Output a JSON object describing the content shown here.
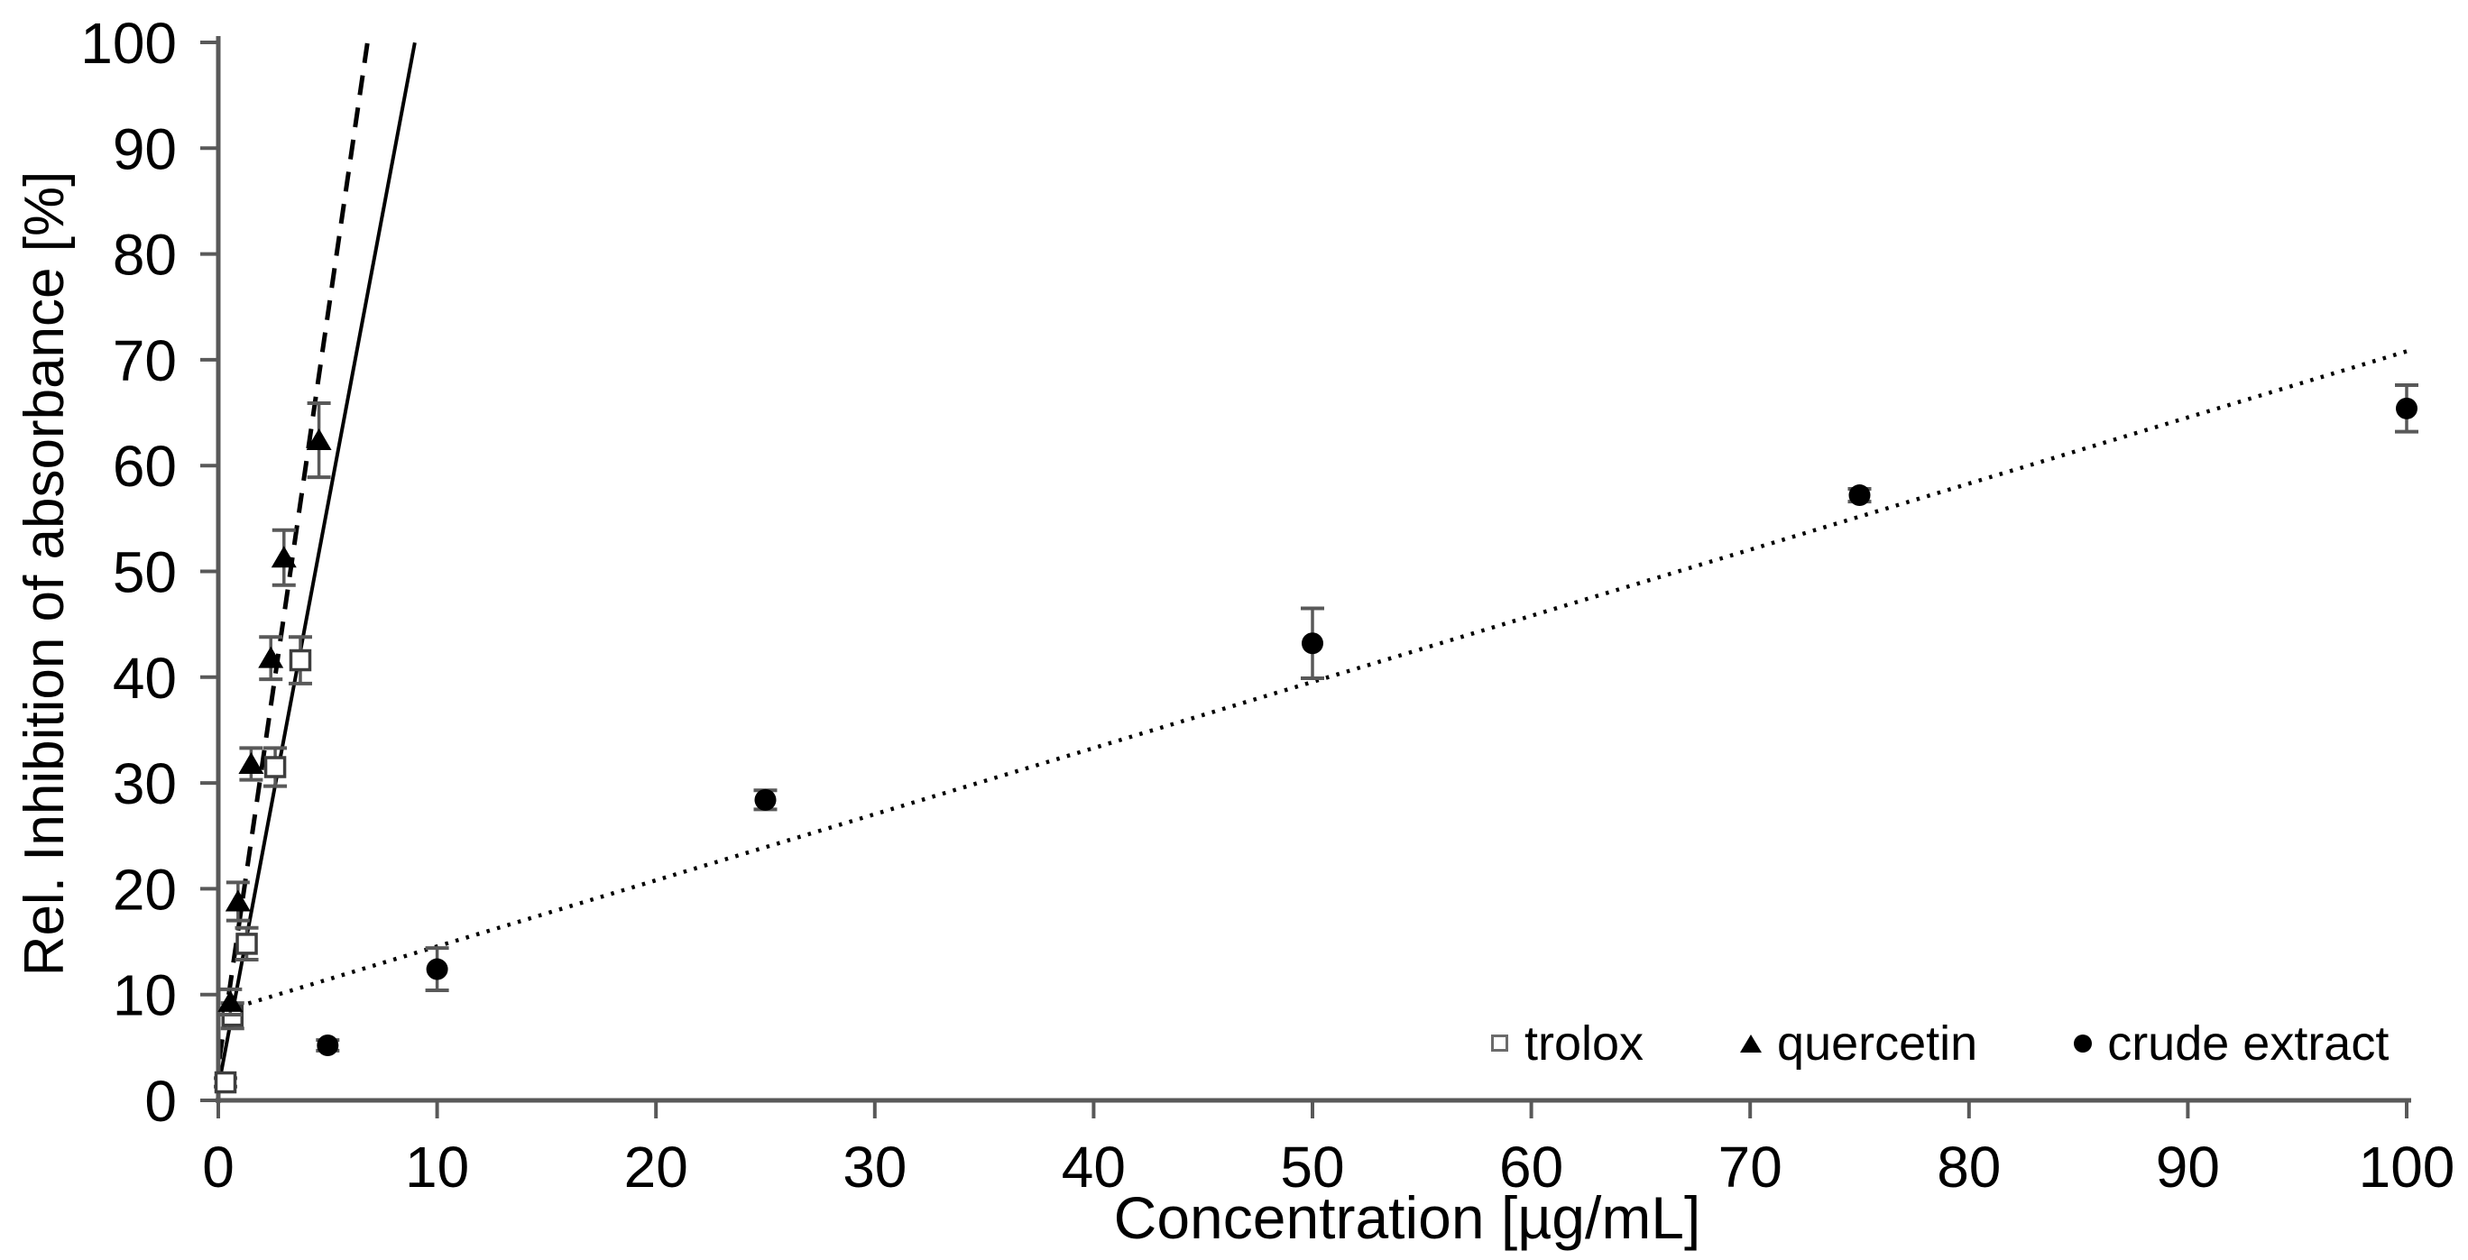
{
  "chart_data": {
    "type": "scatter",
    "title": "",
    "xlabel": "Concentration [µg/mL]",
    "ylabel": "Rel. Inhibition of absorbance [%]",
    "xlim": [
      0,
      100
    ],
    "ylim": [
      0,
      100
    ],
    "x_ticks": [
      0,
      10,
      20,
      30,
      40,
      50,
      60,
      70,
      80,
      90,
      100
    ],
    "y_ticks": [
      0,
      10,
      20,
      30,
      40,
      50,
      60,
      70,
      80,
      90,
      100
    ],
    "grid": false,
    "legend_position": "inside-bottom-right",
    "axis_color": "#595959",
    "error_bar_color": "#595959",
    "marker_color": "#000000",
    "series": [
      {
        "name": "trolox",
        "marker": "open-square",
        "points": [
          {
            "x": 0.33,
            "y": 1.7,
            "err": 0.4
          },
          {
            "x": 0.65,
            "y": 8.0,
            "err": 1.2
          },
          {
            "x": 1.3,
            "y": 14.8,
            "err": 1.5
          },
          {
            "x": 2.6,
            "y": 31.5,
            "err": 1.8
          },
          {
            "x": 3.75,
            "y": 41.6,
            "err": 2.2
          }
        ]
      },
      {
        "name": "quercetin",
        "marker": "filled-triangle",
        "points": [
          {
            "x": 0.55,
            "y": 9.3,
            "err": 1.2
          },
          {
            "x": 0.9,
            "y": 18.8,
            "err": 1.8
          },
          {
            "x": 1.5,
            "y": 31.8,
            "err": 1.5
          },
          {
            "x": 2.4,
            "y": 41.8,
            "err": 2.0
          },
          {
            "x": 3.0,
            "y": 51.3,
            "err": 2.6
          },
          {
            "x": 4.6,
            "y": 62.4,
            "err": 3.5
          }
        ]
      },
      {
        "name": "crude extract",
        "marker": "filled-circle",
        "points": [
          {
            "x": 5,
            "y": 5.2,
            "err": 0.5
          },
          {
            "x": 10,
            "y": 12.4,
            "err": 2.0
          },
          {
            "x": 25,
            "y": 28.4,
            "err": 0.9
          },
          {
            "x": 50,
            "y": 43.2,
            "err": 3.3
          },
          {
            "x": 75,
            "y": 57.2,
            "err": 0.6
          },
          {
            "x": 100,
            "y": 65.4,
            "err": 2.2
          }
        ]
      }
    ],
    "trendlines": [
      {
        "series": "trolox",
        "style": "solid",
        "slope": 11.0,
        "intercept": 1.2,
        "x_start": 0.0,
        "x_end": 8.98
      },
      {
        "series": "quercetin",
        "style": "dashed",
        "slope": 14.2,
        "intercept": 3.2,
        "x_start": 0.05,
        "x_end": 6.82
      },
      {
        "series": "crude extract",
        "style": "dotted",
        "slope": 0.625,
        "intercept": 8.3,
        "x_start": 0.9,
        "x_end": 100
      }
    ]
  }
}
